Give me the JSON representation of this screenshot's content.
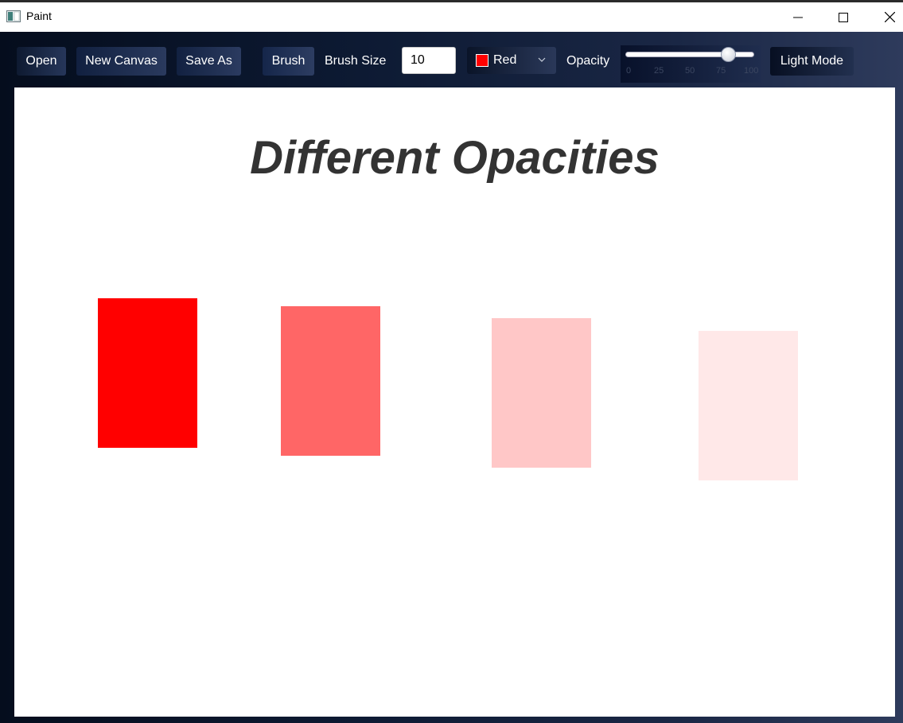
{
  "window": {
    "title": "Paint"
  },
  "toolbar": {
    "open_label": "Open",
    "new_canvas_label": "New Canvas",
    "save_as_label": "Save As",
    "brush_label": "Brush",
    "brush_size_label": "Brush Size",
    "brush_size_value": "10",
    "color_label": "Red",
    "color_swatch": "#ff0000",
    "opacity_label": "Opacity",
    "opacity_value": 80,
    "opacity_ticks": [
      "0",
      "25",
      "50",
      "75",
      "100"
    ],
    "light_mode_label": "Light Mode"
  },
  "canvas": {
    "title": "Different Opacities",
    "fill_color": "#ff0000",
    "rectangles": [
      {
        "opacity": 1.0
      },
      {
        "opacity": 0.6
      },
      {
        "opacity": 0.22
      },
      {
        "opacity": 0.09
      }
    ]
  }
}
